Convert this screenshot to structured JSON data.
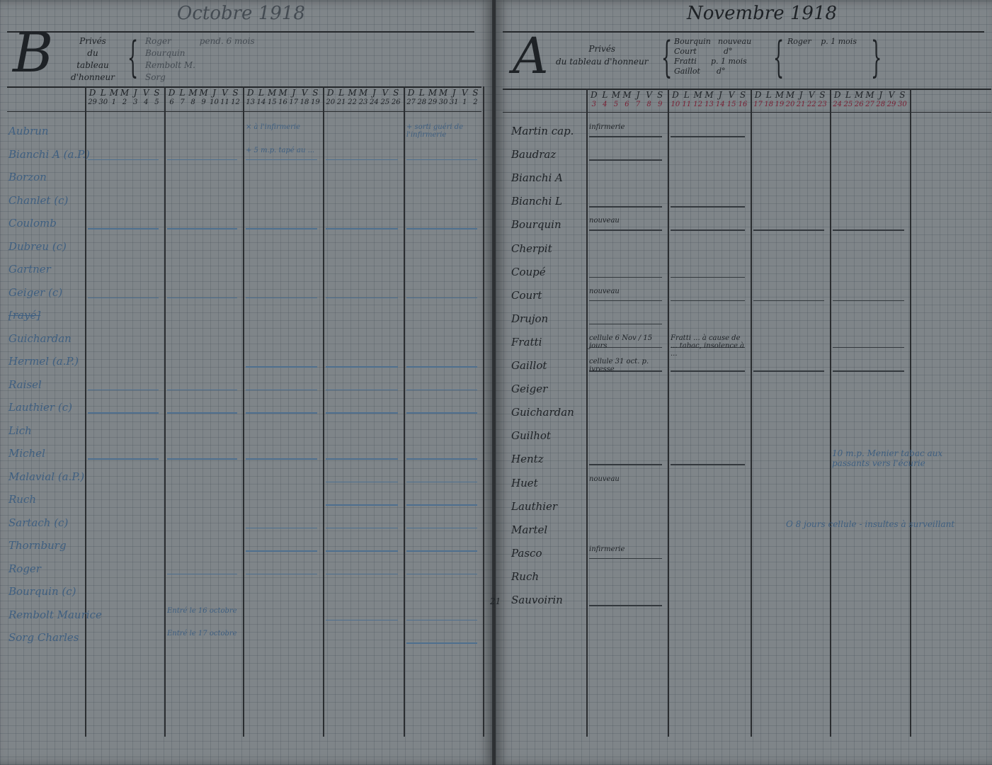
{
  "left_page": {
    "month_title": "Octobre 1918",
    "section_letter": "B",
    "section_label": [
      "Privés",
      "du",
      "tableau",
      "d'honneur"
    ],
    "privations": [
      {
        "name": "Roger",
        "note": "pend. 6 mois"
      },
      {
        "name": "Bourquin",
        "note": ""
      },
      {
        "name": "Rembolt M.",
        "note": ""
      },
      {
        "name": "Sorg",
        "note": ""
      }
    ],
    "weeks": [
      {
        "days": [
          "D",
          "L",
          "M",
          "M",
          "J",
          "V",
          "S"
        ],
        "dates": [
          "29",
          "30",
          "1",
          "2",
          "3",
          "4",
          "5"
        ]
      },
      {
        "days": [
          "D",
          "L",
          "M",
          "M",
          "J",
          "V",
          "S"
        ],
        "dates": [
          "6",
          "7",
          "8",
          "9",
          "10",
          "11",
          "12"
        ]
      },
      {
        "days": [
          "D",
          "L",
          "M",
          "M",
          "J",
          "V",
          "S"
        ],
        "dates": [
          "13",
          "14",
          "15",
          "16",
          "17",
          "18",
          "19"
        ]
      },
      {
        "days": [
          "D",
          "L",
          "M",
          "M",
          "J",
          "V",
          "S"
        ],
        "dates": [
          "20",
          "21",
          "22",
          "23",
          "24",
          "25",
          "26"
        ]
      },
      {
        "days": [
          "D",
          "L",
          "M",
          "M",
          "J",
          "V",
          "S"
        ],
        "dates": [
          "27",
          "28",
          "29",
          "30",
          "31",
          "1",
          "2"
        ]
      }
    ],
    "rows": [
      {
        "name": "Aubrun",
        "marks": [],
        "notes": [
          {
            "week": 2,
            "text": "× à l'infirmerie"
          },
          {
            "week": 4,
            "text": "+ sorti guéri de l'infirmerie"
          }
        ]
      },
      {
        "name": "Bianchi A (a.P.)",
        "marks": [
          0,
          1,
          2,
          3,
          4
        ],
        "notes": [
          {
            "week": 2,
            "text": "+ 5 m.p. tapé au ..."
          }
        ]
      },
      {
        "name": "Borzon",
        "marks": [],
        "notes": []
      },
      {
        "name": "Chanlet (c)",
        "marks": [],
        "notes": []
      },
      {
        "name": "Coulomb",
        "marks": [
          0,
          1,
          2,
          3,
          4
        ],
        "notes": []
      },
      {
        "name": "Dubreu (c)",
        "marks": [],
        "notes": []
      },
      {
        "name": "Gartner",
        "marks": [],
        "notes": []
      },
      {
        "name": "Geiger (c)",
        "marks": [
          0,
          1,
          2,
          3,
          4
        ],
        "notes": []
      },
      {
        "name": "[rayé]",
        "marks": [],
        "notes": []
      },
      {
        "name": "Guichardan",
        "marks": [],
        "notes": []
      },
      {
        "name": "Hermel (a.P.)",
        "marks": [
          2,
          3,
          4
        ],
        "notes": []
      },
      {
        "name": "Raisel",
        "marks": [
          0,
          1,
          2,
          3,
          4
        ],
        "notes": []
      },
      {
        "name": "Lauthier (c)",
        "marks": [
          0,
          1,
          2,
          3,
          4
        ],
        "notes": []
      },
      {
        "name": "Lich",
        "marks": [],
        "notes": []
      },
      {
        "name": "Michel",
        "marks": [
          0,
          1,
          2,
          3,
          4
        ],
        "notes": []
      },
      {
        "name": "Malavial (a.P.)",
        "marks": [
          3,
          4
        ],
        "notes": []
      },
      {
        "name": "Ruch",
        "marks": [
          3,
          4
        ],
        "notes": []
      },
      {
        "name": "Sartach (c)",
        "marks": [
          2,
          3,
          4
        ],
        "notes": []
      },
      {
        "name": "Thornburg",
        "marks": [
          2,
          3,
          4
        ],
        "notes": []
      },
      {
        "name": "Roger",
        "marks": [
          1,
          2,
          3,
          4
        ],
        "notes": []
      },
      {
        "name": "Bourquin (c)",
        "marks": [],
        "notes": []
      },
      {
        "name": "Rembolt Maurice",
        "marks": [
          3,
          4
        ],
        "notes": [
          {
            "week": 1,
            "text": "Entré le 16 octobre"
          }
        ]
      },
      {
        "name": "Sorg Charles",
        "marks": [
          4
        ],
        "notes": [
          {
            "week": 1,
            "text": "Entré le 17 octobre"
          }
        ]
      }
    ]
  },
  "right_page": {
    "month_title": "Novembre 1918",
    "section_letter": "A",
    "section_label": [
      "Privés",
      "du tableau d'honneur"
    ],
    "privations": [
      {
        "name": "Bourquin",
        "note": "nouveau"
      },
      {
        "name": "Court",
        "note": "d°"
      },
      {
        "name": "Fratti",
        "note": "p. 1 mois"
      },
      {
        "name": "Gaillot",
        "note": "d°"
      }
    ],
    "privations_2": [
      {
        "name": "Roger",
        "note": "p. 1 mois"
      }
    ],
    "weeks": [
      {
        "days": [
          "D",
          "L",
          "M",
          "M",
          "J",
          "V",
          "S"
        ],
        "dates": [
          "3",
          "4",
          "5",
          "6",
          "7",
          "8",
          "9"
        ]
      },
      {
        "days": [
          "D",
          "L",
          "M",
          "M",
          "J",
          "V",
          "S"
        ],
        "dates": [
          "10",
          "11",
          "12",
          "13",
          "14",
          "15",
          "16"
        ]
      },
      {
        "days": [
          "D",
          "L",
          "M",
          "M",
          "J",
          "V",
          "S"
        ],
        "dates": [
          "17",
          "18",
          "19",
          "20",
          "21",
          "22",
          "23"
        ]
      },
      {
        "days": [
          "D",
          "L",
          "M",
          "M",
          "J",
          "V",
          "S"
        ],
        "dates": [
          "24",
          "25",
          "26",
          "27",
          "28",
          "29",
          "30"
        ]
      }
    ],
    "rows": [
      {
        "name": "Martin cap.",
        "marks": [
          0,
          1
        ],
        "notes": [
          {
            "week": 0,
            "text": "infirmerie"
          }
        ]
      },
      {
        "name": "Baudraz",
        "marks": [
          0
        ],
        "notes": []
      },
      {
        "name": "Bianchi A",
        "marks": [],
        "notes": []
      },
      {
        "name": "Bianchi L",
        "marks": [
          0,
          1
        ],
        "notes": []
      },
      {
        "name": "Bourquin",
        "marks": [
          0,
          1,
          2,
          3
        ],
        "notes": [
          {
            "week": 0,
            "text": "nouveau"
          }
        ]
      },
      {
        "name": "Cherpit",
        "marks": [],
        "notes": []
      },
      {
        "name": "Coupé",
        "marks": [
          0,
          1
        ],
        "notes": []
      },
      {
        "name": "Court",
        "marks": [
          0,
          1,
          2,
          3
        ],
        "notes": [
          {
            "week": 0,
            "text": "nouveau"
          }
        ]
      },
      {
        "name": "Drujon",
        "marks": [
          0
        ],
        "notes": []
      },
      {
        "name": "Fratti",
        "marks": [
          0,
          1,
          3
        ],
        "notes": [
          {
            "week": 0,
            "text": "cellule 6 Nov / 15 jours"
          },
          {
            "week": 1,
            "text": "Fratti ... à cause de ... tabac, insolence à ..."
          }
        ]
      },
      {
        "name": "Gaillot",
        "marks": [
          0,
          1,
          2,
          3
        ],
        "notes": [
          {
            "week": 0,
            "text": "cellule 31 oct. p. ivresse"
          }
        ]
      },
      {
        "name": "Geiger",
        "marks": [],
        "notes": []
      },
      {
        "name": "Guichardan",
        "marks": [],
        "notes": []
      },
      {
        "name": "Guilhot",
        "marks": [],
        "notes": []
      },
      {
        "name": "Hentz",
        "marks": [
          0,
          1
        ],
        "notes": []
      },
      {
        "name": "Huet",
        "marks": [],
        "notes": [
          {
            "week": 0,
            "text": "nouveau"
          }
        ]
      },
      {
        "name": "Lauthier",
        "marks": [],
        "notes": []
      },
      {
        "name": "Martel",
        "marks": [],
        "notes": []
      },
      {
        "name": "Pasco",
        "marks": [
          0
        ],
        "notes": [
          {
            "week": 0,
            "text": "infirmerie"
          }
        ]
      },
      {
        "name": "Ruch",
        "marks": [],
        "notes": []
      },
      {
        "name": "Sauvoirin",
        "number": "21",
        "marks": [
          0
        ],
        "notes": []
      }
    ],
    "margin_notes": [
      {
        "row": 14,
        "text": "10 m.p. Menier tabac aux passants vers l'écurie"
      },
      {
        "row": 17,
        "text": "O 8 jours cellule - insultes à surveillant"
      }
    ]
  },
  "colors": {
    "paper": "#7f8589",
    "ink": "#1e2226",
    "pencil_blue": "#3f5f80",
    "red_ink": "#7a1f33",
    "background": "#3b3f42"
  }
}
